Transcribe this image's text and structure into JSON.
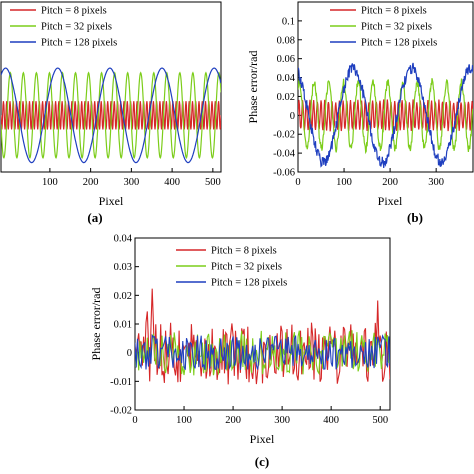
{
  "chart_data": [
    {
      "type": "line",
      "panel_label": "(a)",
      "xlabel": "Pixel",
      "ylabel": "",
      "xlim": [
        -20,
        520
      ],
      "ylim": [
        -0.06,
        0.12
      ],
      "xticks": [
        100,
        200,
        300,
        400,
        500
      ],
      "yticks": [],
      "legend": "top",
      "series": [
        {
          "name": "Pitch = 8 pixels",
          "color": "#d62728",
          "pattern": "sine",
          "period": 8,
          "amplitude": 0.015,
          "offset": 0.0
        },
        {
          "name": "Pitch = 32 pixels",
          "color": "#7ccd1a",
          "pattern": "sine",
          "period": 32,
          "amplitude": 0.045,
          "offset": 0.0
        },
        {
          "name": "Pitch = 128 pixels",
          "color": "#1f3fbf",
          "pattern": "sine",
          "period": 128,
          "amplitude": 0.05,
          "offset": 0.0
        }
      ]
    },
    {
      "type": "line",
      "panel_label": "(b)",
      "xlabel": "Pixel",
      "ylabel": "Phase error/rad",
      "xlim": [
        0,
        380
      ],
      "ylim": [
        -0.06,
        0.12
      ],
      "xticks": [
        0,
        100,
        200,
        300
      ],
      "yticks": [
        -0.06,
        -0.04,
        -0.02,
        0,
        0.02,
        0.04,
        0.06,
        0.08,
        0.1
      ],
      "legend": "top-right",
      "series": [
        {
          "name": "Pitch = 8 pixels",
          "color": "#d62728",
          "pattern": "sine",
          "period": 8,
          "amplitude": 0.015,
          "offset": 0.0
        },
        {
          "name": "Pitch = 32 pixels",
          "color": "#7ccd1a",
          "pattern": "sine",
          "period": 32,
          "amplitude": 0.035,
          "offset": 0.0
        },
        {
          "name": "Pitch = 128 pixels",
          "color": "#1f3fbf",
          "pattern": "sine",
          "period": 128,
          "amplitude": 0.05,
          "offset": 0.0
        }
      ]
    },
    {
      "type": "line",
      "panel_label": "(c)",
      "xlabel": "Pixel",
      "ylabel": "Phase error/rad",
      "xlim": [
        0,
        520
      ],
      "ylim": [
        -0.02,
        0.04
      ],
      "xticks": [
        0,
        100,
        200,
        300,
        400,
        500
      ],
      "yticks": [
        -0.02,
        -0.01,
        0,
        0.01,
        0.02,
        0.03,
        0.04
      ],
      "legend": "top-right",
      "series": [
        {
          "name": "Pitch = 8 pixels",
          "color": "#d62728",
          "pattern": "noise",
          "amplitude": 0.011,
          "offset": 0.0
        },
        {
          "name": "Pitch = 32 pixels",
          "color": "#7ccd1a",
          "pattern": "noise",
          "amplitude": 0.008,
          "offset": 0.0
        },
        {
          "name": "Pitch = 128 pixels",
          "color": "#1f3fbf",
          "pattern": "noise",
          "amplitude": 0.006,
          "offset": 0.0
        }
      ]
    }
  ]
}
